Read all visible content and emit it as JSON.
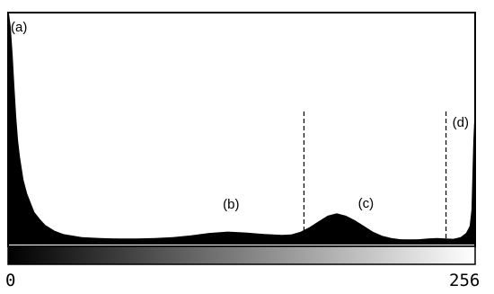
{
  "chart_data": {
    "type": "area",
    "title": "",
    "xlabel": "",
    "ylabel": "",
    "xlim": [
      0,
      256
    ],
    "ylim": [
      0,
      100
    ],
    "grid": false,
    "legend": "none",
    "fill_color": "#000000",
    "gradient_bar": {
      "from": "#000000",
      "to": "#ffffff"
    },
    "tick_labels": {
      "min": "0",
      "max": "256"
    },
    "x": [
      0,
      1,
      2,
      3,
      4,
      5,
      6,
      7,
      8,
      10,
      12,
      14,
      17,
      20,
      25,
      30,
      40,
      50,
      60,
      70,
      80,
      90,
      100,
      110,
      120,
      130,
      140,
      150,
      155,
      160,
      165,
      170,
      175,
      180,
      185,
      190,
      195,
      200,
      205,
      210,
      215,
      220,
      225,
      230,
      235,
      240,
      244,
      248,
      251,
      253,
      254,
      255,
      256
    ],
    "y": [
      100,
      94,
      82,
      68,
      55,
      45,
      38,
      33,
      28,
      22,
      18,
      14,
      11,
      8.5,
      6,
      4.5,
      3.2,
      2.8,
      2.6,
      2.6,
      2.8,
      3.2,
      4,
      5,
      5.6,
      5.2,
      4.6,
      4.2,
      4.4,
      5.5,
      7.5,
      10,
      12.5,
      13.5,
      12.5,
      10.5,
      8,
      5.5,
      3.8,
      2.8,
      2.3,
      2.2,
      2.3,
      2.6,
      2.8,
      2.6,
      2.5,
      3.2,
      5,
      8,
      15,
      45,
      62
    ],
    "annotations": [
      {
        "label": "(a)",
        "x": 1
      },
      {
        "label": "(b)",
        "x": 122
      },
      {
        "label": "(c)",
        "x": 196
      },
      {
        "label": "(d)",
        "x": 250
      }
    ],
    "dashed_markers": [
      162,
      240
    ]
  }
}
